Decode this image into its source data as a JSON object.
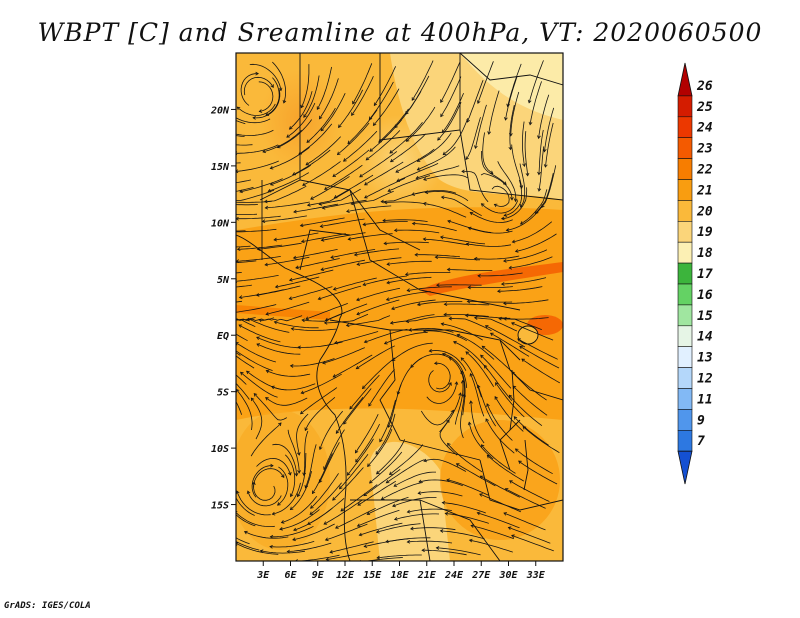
{
  "title": "WBPT [C] and Sreamline at 400hPa, VT: 2020060500",
  "footer": "GrADS: IGES/COLA",
  "map": {
    "lon_range": [
      0,
      36
    ],
    "lat_range": [
      -20,
      25
    ],
    "lon_ticks": [
      {
        "value": 3,
        "label": "3E"
      },
      {
        "value": 6,
        "label": "6E"
      },
      {
        "value": 9,
        "label": "9E"
      },
      {
        "value": 12,
        "label": "12E"
      },
      {
        "value": 15,
        "label": "15E"
      },
      {
        "value": 18,
        "label": "18E"
      },
      {
        "value": 21,
        "label": "21E"
      },
      {
        "value": 24,
        "label": "24E"
      },
      {
        "value": 27,
        "label": "27E"
      },
      {
        "value": 30,
        "label": "30E"
      },
      {
        "value": 33,
        "label": "33E"
      }
    ],
    "lat_ticks": [
      {
        "value": 20,
        "label": "20N"
      },
      {
        "value": 15,
        "label": "15N"
      },
      {
        "value": 10,
        "label": "10N"
      },
      {
        "value": 5,
        "label": "5N"
      },
      {
        "value": 0,
        "label": "EQ"
      },
      {
        "value": -5,
        "label": "5S"
      },
      {
        "value": -10,
        "label": "10S"
      },
      {
        "value": -15,
        "label": "15S"
      }
    ]
  },
  "colorbar": {
    "levels": [
      "26",
      "25",
      "24",
      "23",
      "22",
      "21",
      "20",
      "19",
      "18",
      "17",
      "16",
      "15",
      "14",
      "13",
      "12",
      "11",
      "9",
      "7"
    ],
    "colors": [
      "#b20000",
      "#d41c00",
      "#ec3800",
      "#f45a00",
      "#f77d00",
      "#f99d10",
      "#fab93a",
      "#fbd57a",
      "#fcf0b4",
      "#3cb43c",
      "#64d264",
      "#a0e6a0",
      "#e6f5e6",
      "#e1f0ff",
      "#b4d7fa",
      "#82b9f5",
      "#5096ec",
      "#2d78e1",
      "#1450d2"
    ]
  }
}
